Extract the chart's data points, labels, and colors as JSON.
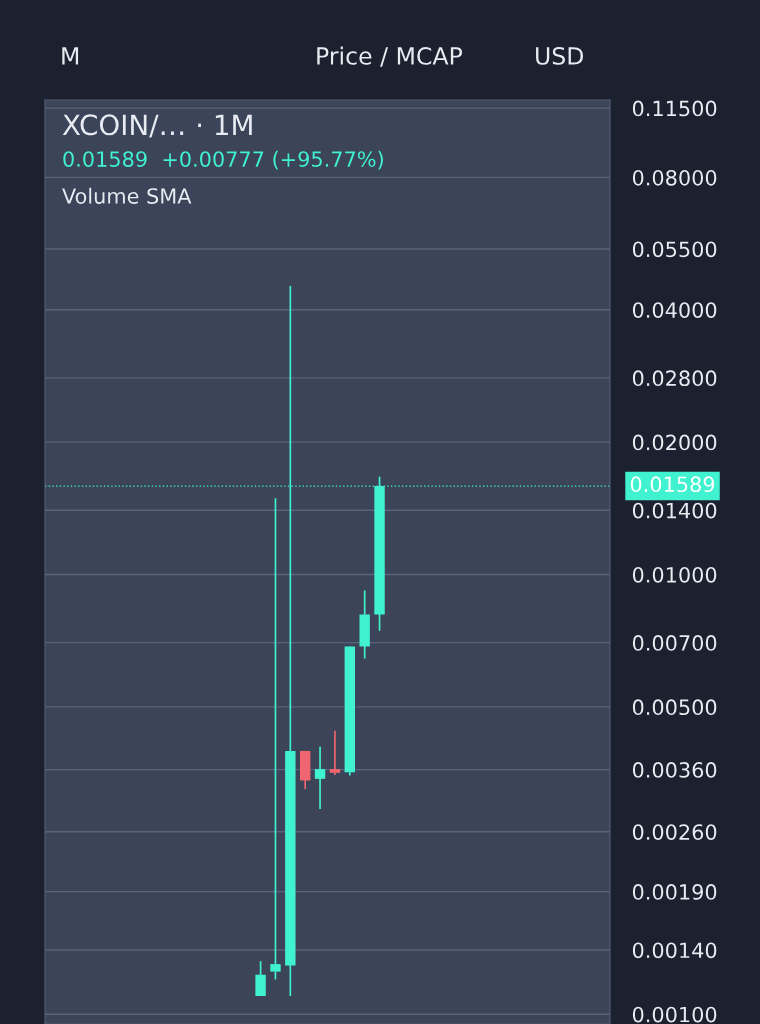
{
  "chart_data": {
    "type": "candlestick",
    "title": "XCOIN/… · 1M",
    "subtitle": "0.01589  +0.00777 (+95.77%)",
    "annotations": [
      "Volume SMA",
      "M",
      "Price / MCAP",
      "USD"
    ],
    "categories": [
      null,
      null,
      null,
      null,
      null,
      null,
      null,
      null,
      null,
      null,
      null,
      null,
      null,
      null,
      null,
      null,
      null,
      null,
      null,
      null,
      null,
      null,
      null,
      null,
      null,
      null,
      null,
      null,
      null,
      null,
      null,
      null,
      null,
      null,
      null,
      null,
      null,
      null
    ],
    "ohlc": [
      null,
      null,
      null,
      null,
      null,
      null,
      null,
      null,
      null,
      null,
      null,
      null,
      null,
      null,
      [
        0.0011,
        0.00132,
        0.0011,
        0.00123
      ],
      [
        0.00125,
        0.0149,
        0.0012,
        0.0013
      ],
      [
        0.00129,
        0.0453,
        0.0011,
        0.00397
      ],
      [
        0.00397,
        0.00397,
        0.00325,
        0.0034
      ],
      [
        0.00343,
        0.00406,
        0.00293,
        0.00361
      ],
      [
        0.00361,
        0.00441,
        0.0035,
        0.00354
      ],
      [
        0.00355,
        0.00686,
        0.00349,
        0.00686
      ],
      [
        0.00686,
        0.0092,
        0.00644,
        0.00811
      ],
      [
        0.00811,
        0.0167,
        0.00745,
        0.01589
      ],
      null,
      null,
      null,
      null,
      null,
      null,
      null,
      null,
      null,
      null,
      null,
      null,
      null,
      null,
      null
    ],
    "colors": [
      null,
      null,
      null,
      null,
      null,
      null,
      null,
      null,
      null,
      null,
      null,
      null,
      null,
      null,
      "#40f2cf",
      "#40f2cf",
      "#40f2cf",
      "#f0656f",
      "#40f2cf",
      "#f0656f",
      "#40f2cf",
      "#40f2cf",
      "#40f2cf",
      null,
      null,
      null,
      null,
      null,
      null,
      null,
      null,
      null,
      null,
      null,
      null,
      null,
      null,
      null
    ],
    "log": true,
    "ylim": [
      0.00095,
      0.12
    ],
    "yticks": [
      {
        "value": 0.001,
        "label": "0.00100"
      },
      {
        "value": 0.0014,
        "label": "0.00140"
      },
      {
        "value": 0.0019,
        "label": "0.00190"
      },
      {
        "value": 0.0026,
        "label": "0.00260"
      },
      {
        "value": 0.0036,
        "label": "0.00360"
      },
      {
        "value": 0.005,
        "label": "0.00500"
      },
      {
        "value": 0.007,
        "label": "0.00700"
      },
      {
        "value": 0.01,
        "label": "0.01000"
      },
      {
        "value": 0.014,
        "label": "0.01400"
      },
      {
        "value": 0.02,
        "label": "0.02000"
      },
      {
        "value": 0.028,
        "label": "0.02800"
      },
      {
        "value": 0.04,
        "label": "0.04000"
      },
      {
        "value": 0.055,
        "label": "0.05500"
      },
      {
        "value": 0.08,
        "label": "0.08000"
      },
      {
        "value": 0.115,
        "label": "0.11500"
      }
    ],
    "ref_lines": [
      {
        "axis": "y",
        "value": 0.01589,
        "label": "0.01589",
        "color": "#40f2cf",
        "line_style": "dotted"
      }
    ],
    "grid": "y",
    "tick_labels": "y"
  }
}
